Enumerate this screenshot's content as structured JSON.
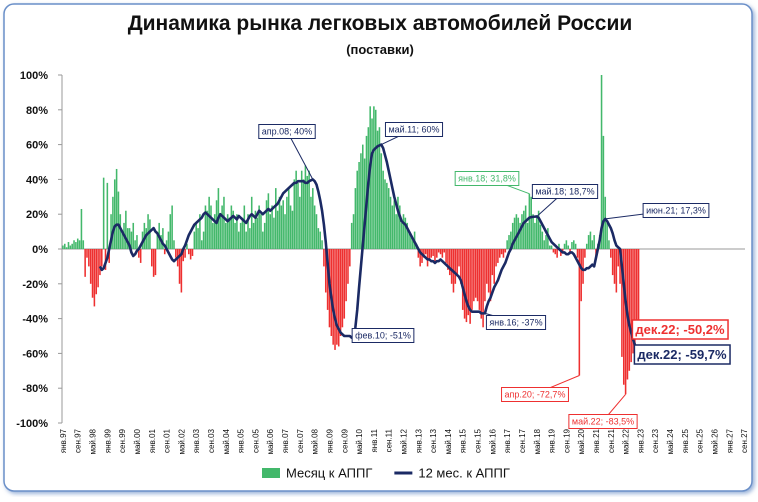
{
  "chart_data": {
    "type": "bar-line",
    "title": "Динамика рынка легковых автомобилей России",
    "subtitle": "(поставки)",
    "categories": [
      "янв.97",
      null,
      null,
      null,
      null,
      null,
      null,
      null,
      "сен.97",
      null,
      null,
      null,
      null,
      null,
      null,
      null,
      "май.98",
      null,
      null,
      null,
      null,
      null,
      null,
      null,
      "янв.99",
      null,
      null,
      null,
      null,
      null,
      null,
      null,
      "сен.99",
      null,
      null,
      null,
      null,
      null,
      null,
      null,
      "май.00",
      null,
      null,
      null,
      null,
      null,
      null,
      null,
      "янв.01",
      null,
      null,
      null,
      null,
      null,
      null,
      null,
      "сен.01",
      null,
      null,
      null,
      null,
      null,
      null,
      null,
      "май.02",
      null,
      null,
      null,
      null,
      null,
      null,
      null,
      "янв.03",
      null,
      null,
      null,
      null,
      null,
      null,
      null,
      "сен.03",
      null,
      null,
      null,
      null,
      null,
      null,
      null,
      "май.04",
      null,
      null,
      null,
      null,
      null,
      null,
      null,
      "янв.05",
      null,
      null,
      null,
      null,
      null,
      null,
      null,
      "сен.05",
      null,
      null,
      null,
      null,
      null,
      null,
      null,
      "май.06",
      null,
      null,
      null,
      null,
      null,
      null,
      null,
      "янв.07",
      null,
      null,
      null,
      null,
      null,
      null,
      null,
      "сен.07",
      null,
      null,
      null,
      null,
      null,
      null,
      null,
      "май.08",
      null,
      null,
      null,
      null,
      null,
      null,
      null,
      "янв.09",
      null,
      null,
      null,
      null,
      null,
      null,
      null,
      "сен.09",
      null,
      null,
      null,
      null,
      null,
      null,
      null,
      "май.10",
      null,
      null,
      null,
      null,
      null,
      null,
      null,
      "янв.11",
      null,
      null,
      null,
      null,
      null,
      null,
      null,
      "сен.11",
      null,
      null,
      null,
      null,
      null,
      null,
      null,
      "май.12",
      null,
      null,
      null,
      null,
      null,
      null,
      null,
      "янв.13",
      null,
      null,
      null,
      null,
      null,
      null,
      null,
      "сен.13",
      null,
      null,
      null,
      null,
      null,
      null,
      null,
      "май.14",
      null,
      null,
      null,
      null,
      null,
      null,
      null,
      "янв.15",
      null,
      null,
      null,
      null,
      null,
      null,
      null,
      "сен.15",
      null,
      null,
      null,
      null,
      null,
      null,
      null,
      "май.16",
      null,
      null,
      null,
      null,
      null,
      null,
      null,
      "янв.17",
      null,
      null,
      null,
      null,
      null,
      null,
      null,
      "сен.17",
      null,
      null,
      null,
      null,
      null,
      null,
      null,
      "май.18",
      null,
      null,
      null,
      null,
      null,
      null,
      null,
      "янв.19",
      null,
      null,
      null,
      null,
      null,
      null,
      null,
      "сен.19",
      null,
      null,
      null,
      null,
      null,
      null,
      null,
      "май.20",
      null,
      null,
      null,
      null,
      null,
      null,
      null,
      "янв.21",
      null,
      null,
      null,
      null,
      null,
      null,
      null,
      "сен.21",
      null,
      null,
      null,
      null,
      null,
      null,
      null,
      "май.22",
      null,
      null,
      null,
      null,
      null,
      null,
      null,
      "янв.23",
      null,
      null,
      null,
      null,
      null,
      null,
      null,
      "сен.23",
      null,
      null,
      null,
      null,
      null,
      null,
      null,
      "май.24",
      null,
      null,
      null,
      null,
      null,
      null,
      null,
      "янв.25",
      null,
      null,
      null,
      null,
      null,
      null,
      null,
      "сен.25",
      null,
      null,
      null,
      null,
      null,
      null,
      null,
      "май.26",
      null,
      null,
      null,
      null,
      null,
      null,
      null,
      "янв.27",
      null,
      null,
      null,
      null,
      null,
      null,
      null,
      "сен.27"
    ],
    "series": [
      {
        "name": "Месяц к АППГ",
        "type": "bar",
        "color": "#43b86b",
        "negative_color": "#ee3030",
        "values": [
          2,
          3,
          1,
          4,
          2,
          3,
          5,
          4,
          6,
          5,
          23,
          5,
          -16,
          -5,
          -10,
          -20,
          -28,
          -33,
          -26,
          -22,
          -15,
          -10,
          41,
          -12,
          38,
          -8,
          20,
          30,
          40,
          46,
          33,
          20,
          10,
          15,
          22,
          12,
          12,
          10,
          15,
          5,
          8,
          -5,
          -8,
          10,
          15,
          12,
          20,
          17,
          -10,
          -16,
          -15,
          10,
          15,
          8,
          12,
          -3,
          5,
          10,
          20,
          25,
          5,
          -5,
          -10,
          -20,
          -25,
          -7,
          -5,
          3,
          -3,
          -6,
          -4,
          10,
          15,
          12,
          20,
          5,
          10,
          25,
          22,
          30,
          25,
          15,
          20,
          28,
          35,
          20,
          25,
          30,
          15,
          20,
          18,
          25,
          22,
          15,
          20,
          10,
          15,
          18,
          25,
          10,
          20,
          12,
          30,
          15,
          22,
          18,
          25,
          20,
          10,
          15,
          28,
          32,
          20,
          25,
          18,
          35,
          22,
          30,
          25,
          28,
          20,
          30,
          35,
          25,
          22,
          40,
          45,
          38,
          30,
          45,
          40,
          48,
          42,
          45,
          30,
          35,
          25,
          20,
          12,
          10,
          5,
          -10,
          -25,
          -35,
          -45,
          -50,
          -55,
          -58,
          -55,
          -56,
          -50,
          -45,
          -40,
          -30,
          -20,
          -10,
          15,
          20,
          35,
          45,
          50,
          55,
          60,
          52,
          65,
          70,
          82,
          75,
          82,
          80,
          68,
          70,
          55,
          45,
          40,
          38,
          35,
          30,
          25,
          28,
          20,
          30,
          25,
          15,
          20,
          18,
          15,
          10,
          8,
          5,
          10,
          3,
          -5,
          -10,
          -8,
          -5,
          -3,
          -10,
          -6,
          -5,
          -4,
          -8,
          -5,
          -2,
          -3,
          -5,
          -2,
          -8,
          -12,
          -15,
          -20,
          -25,
          -20,
          -15,
          -10,
          -20,
          -35,
          -40,
          -42,
          -38,
          -43,
          -35,
          -30,
          -28,
          -30,
          -35,
          -40,
          -45,
          -30,
          -20,
          -25,
          -30,
          -15,
          -20,
          -10,
          -8,
          -5,
          -3,
          -5,
          -2,
          5,
          8,
          10,
          15,
          18,
          20,
          18,
          15,
          20,
          22,
          25,
          15,
          31.8,
          30,
          20,
          15,
          18,
          22,
          14,
          10,
          5,
          8,
          12,
          2,
          2,
          -2,
          -3,
          -5,
          3,
          -4,
          -2,
          3,
          5,
          2,
          -3,
          4,
          5,
          3,
          -5,
          -72.7,
          -30,
          -20,
          -5,
          3,
          8,
          10,
          5,
          8,
          -5,
          3,
          8,
          100,
          65,
          30,
          15,
          5,
          -5,
          -15,
          -20,
          -25,
          -10,
          -20,
          -62,
          -78,
          -83.5,
          -75,
          -70,
          -65,
          -60,
          -55,
          -50,
          -50.2,
          null,
          null,
          null,
          null,
          null,
          null,
          null,
          null,
          null,
          null,
          null,
          null,
          null,
          null,
          null,
          null,
          null,
          null,
          null,
          null,
          null,
          null,
          null,
          null,
          null,
          null,
          null,
          null,
          null,
          null,
          null,
          null,
          null,
          null,
          null,
          null,
          null,
          null,
          null,
          null,
          null,
          null,
          null,
          null,
          null,
          null,
          null,
          null,
          null,
          null,
          null,
          null,
          null,
          null,
          null,
          null,
          null
        ]
      },
      {
        "name": "12 мес. к АППГ",
        "type": "line",
        "color": "#1b2a64",
        "values": [
          null,
          null,
          null,
          null,
          null,
          null,
          null,
          null,
          null,
          null,
          null,
          null,
          null,
          null,
          null,
          null,
          null,
          null,
          null,
          null,
          -10,
          -12,
          -11,
          -8,
          -5,
          0,
          5,
          10,
          13,
          14,
          14,
          12,
          10,
          8,
          6,
          4,
          2,
          -2,
          -4,
          -3,
          -1,
          0,
          2,
          4,
          6,
          8,
          9,
          10,
          11,
          12,
          10,
          9,
          7,
          5,
          3,
          2,
          0,
          -2,
          -4,
          -6,
          -7,
          -6,
          -5,
          -4,
          -3,
          0,
          2,
          5,
          8,
          10,
          12,
          14,
          15,
          16,
          17,
          18,
          20,
          21,
          20,
          19,
          18,
          17,
          16,
          15,
          18,
          20,
          19,
          18,
          17,
          16,
          17,
          18,
          19,
          18,
          17,
          19,
          18,
          17,
          16,
          15,
          17,
          19,
          20,
          19,
          18,
          20,
          22,
          21,
          20,
          21,
          22,
          23,
          22,
          23,
          24,
          25,
          26,
          28,
          30,
          32,
          33,
          34,
          35,
          36,
          37,
          38,
          38,
          39,
          39,
          39,
          39,
          38,
          38,
          39,
          39.5,
          40,
          39,
          37,
          33,
          28,
          22,
          14,
          4,
          -8,
          -20,
          -28,
          -35,
          -40,
          -44,
          -46,
          -48,
          -49,
          -50,
          -50,
          -50,
          -50,
          -51,
          -51,
          -45,
          -35,
          -22,
          -10,
          2,
          14,
          26,
          38,
          48,
          55,
          57,
          58,
          59,
          59.5,
          60,
          58,
          54,
          50,
          45,
          40,
          35,
          30,
          26,
          22,
          19,
          16,
          15,
          14,
          12,
          10,
          8,
          6,
          4,
          2,
          0,
          -2,
          -3,
          -4,
          -5,
          -6,
          -6,
          -7,
          -7,
          -8,
          -7,
          -7,
          -6,
          -7,
          -8,
          -9,
          -10,
          -11,
          -12,
          -13,
          -14,
          -15,
          -16,
          -18,
          -22,
          -26,
          -30,
          -33,
          -35,
          -36,
          -36,
          -36,
          -36,
          -36,
          -37,
          -37,
          -37,
          -33,
          -30,
          -28,
          -25,
          -22,
          -20,
          -18,
          -15,
          -12,
          -10,
          -8,
          -5,
          -2,
          0,
          3,
          5,
          7,
          9,
          11,
          13,
          15,
          16,
          17,
          18,
          18.3,
          18.5,
          18.6,
          18.7,
          18,
          16,
          14,
          12,
          10,
          8,
          6,
          4,
          3,
          2,
          1,
          0,
          -1,
          -2,
          -2,
          -3,
          -3,
          -2,
          -2,
          -3,
          -5,
          -7,
          -9,
          -11,
          -12,
          -12,
          -11,
          -11,
          -10,
          -9,
          -10,
          -5,
          0,
          5,
          12,
          16,
          17.3,
          16,
          14,
          12,
          9,
          5,
          2,
          1,
          0,
          -10,
          -20,
          -30,
          -38,
          -44,
          -48,
          -52,
          -55,
          -57,
          -59.7,
          null,
          null,
          null,
          null,
          null,
          null,
          null,
          null,
          null,
          null,
          null,
          null,
          null,
          null,
          null,
          null,
          null,
          null,
          null,
          null,
          null,
          null,
          null,
          null,
          null,
          null,
          null,
          null,
          null,
          null,
          null,
          null,
          null,
          null,
          null,
          null,
          null,
          null,
          null,
          null,
          null,
          null,
          null,
          null,
          null,
          null,
          null,
          null,
          null,
          null,
          null,
          null,
          null,
          null,
          null,
          null,
          null
        ]
      }
    ],
    "ylim": [
      -100,
      100
    ],
    "yticks": [
      {
        "value": -100,
        "label": "-100%"
      },
      {
        "value": -80,
        "label": "-80%"
      },
      {
        "value": -60,
        "label": "-60%"
      },
      {
        "value": -40,
        "label": "-40%"
      },
      {
        "value": -20,
        "label": "-20%"
      },
      {
        "value": 0,
        "label": "0%"
      },
      {
        "value": 20,
        "label": "20%"
      },
      {
        "value": 40,
        "label": "40%"
      },
      {
        "value": 60,
        "label": "60%"
      },
      {
        "value": 80,
        "label": "80%"
      },
      {
        "value": 100,
        "label": "100%"
      }
    ],
    "grid": false,
    "legend": "bottom",
    "annotations": [
      {
        "text": "апр.08; 40%",
        "color": "#1b2a64"
      },
      {
        "text": "май.11; 60%",
        "color": "#1b2a64"
      },
      {
        "text": "янв.18; 31,8%",
        "color": "#43b86b"
      },
      {
        "text": "май.18; 18,7%",
        "color": "#1b2a64"
      },
      {
        "text": "июн.21; 17,3%",
        "color": "#1b2a64"
      },
      {
        "text": "фев.10; -51%",
        "color": "#1b2a64"
      },
      {
        "text": "янв.16; -37%",
        "color": "#1b2a64"
      },
      {
        "text": "апр.20; -72,7%",
        "color": "#ee3030"
      },
      {
        "text": "май.22; -83,5%",
        "color": "#ee3030"
      },
      {
        "text": "дек.22; -50,2%",
        "color": "#ee3030"
      },
      {
        "text": "дек.22; -59,7%",
        "color": "#1b2a64"
      }
    ]
  }
}
